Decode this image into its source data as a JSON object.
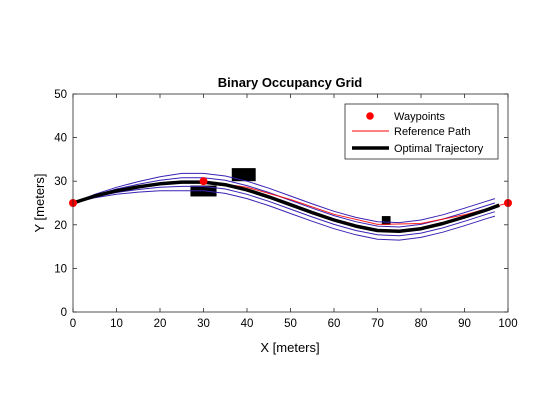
{
  "chart_data": {
    "type": "line",
    "title": "Binary Occupancy Grid",
    "xlabel": "X [meters]",
    "ylabel": "Y [meters]",
    "xlim": [
      0,
      100
    ],
    "ylim": [
      0,
      50
    ],
    "xticks": [
      0,
      10,
      20,
      30,
      40,
      50,
      60,
      70,
      80,
      90,
      100
    ],
    "yticks": [
      0,
      10,
      20,
      30,
      40,
      50
    ],
    "grid": false,
    "legend": {
      "location": "top-right",
      "entries": [
        "Waypoints",
        "Reference Path",
        "Optimal Trajectory"
      ]
    },
    "obstacles": [
      {
        "x": [
          27,
          33
        ],
        "y": [
          26.5,
          29
        ]
      },
      {
        "x": [
          36.5,
          42
        ],
        "y": [
          30,
          33
        ]
      },
      {
        "x": [
          71,
          73
        ],
        "y": [
          20,
          22
        ]
      }
    ],
    "series": [
      {
        "name": "Waypoints",
        "kind": "scatter",
        "color": "#ff0000",
        "x": [
          0,
          30,
          100
        ],
        "y": [
          25,
          30,
          25
        ]
      },
      {
        "name": "Reference Path",
        "kind": "line",
        "color": "#ff0000",
        "x": [
          0,
          10,
          20,
          30,
          40,
          50,
          60,
          70,
          80,
          90,
          100
        ],
        "y": [
          25,
          27.8,
          29.6,
          30,
          28.6,
          25.8,
          22.4,
          20.1,
          20.3,
          22.3,
          25
        ]
      },
      {
        "name": "Optimal Trajectory",
        "kind": "line",
        "color": "#000000",
        "x": [
          0,
          5,
          10,
          15,
          20,
          25,
          30,
          35,
          40,
          45,
          50,
          55,
          60,
          65,
          70,
          75,
          80,
          85,
          90,
          95,
          98
        ],
        "y": [
          25,
          26.6,
          27.8,
          28.7,
          29.4,
          29.8,
          29.8,
          29.2,
          28,
          26.4,
          24.6,
          22.8,
          21.1,
          19.7,
          18.7,
          18.5,
          19.1,
          20.3,
          21.8,
          23.4,
          24.5
        ]
      }
    ],
    "candidate_trajectories": {
      "color": "#3b22b4",
      "x": [
        0,
        5,
        10,
        15,
        20,
        25,
        30,
        35,
        40,
        45,
        50,
        55,
        60,
        65,
        70,
        75,
        80,
        85,
        90,
        95,
        97
      ],
      "offsets": [
        -2,
        -1,
        0,
        1,
        2
      ],
      "y": [
        25,
        26.6,
        27.8,
        28.7,
        29.4,
        29.8,
        29.8,
        29.2,
        28,
        26.4,
        24.6,
        22.8,
        21.1,
        19.7,
        18.7,
        18.5,
        19.1,
        20.3,
        21.8,
        23.4,
        24
      ]
    }
  }
}
